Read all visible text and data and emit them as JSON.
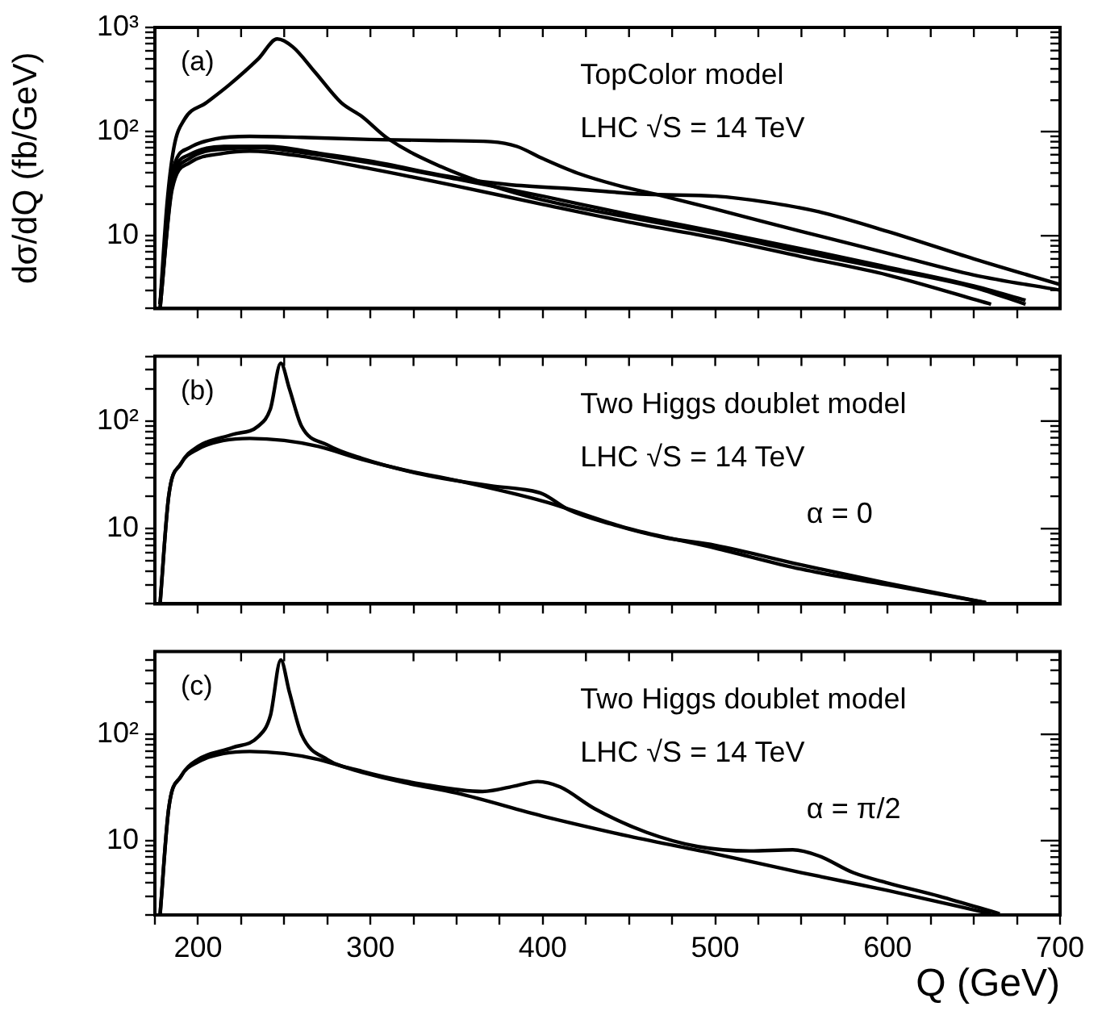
{
  "chart_data": [
    {
      "type": "line",
      "ylabel": "dσ/dQ (fb/GeV)",
      "annotations": [
        "(a)",
        "TopColor model",
        "LHC √S = 14 TeV"
      ],
      "log": true,
      "grid": false,
      "legend": false,
      "tick_labels": "y",
      "xlim": [
        175,
        700
      ],
      "xticks": [
        {
          "value": 200,
          "label": null
        },
        {
          "value": 225,
          "label": null
        },
        {
          "value": 250,
          "label": null
        },
        {
          "value": 275,
          "label": null
        },
        {
          "value": 300,
          "label": null
        },
        {
          "value": 325,
          "label": null
        },
        {
          "value": 350,
          "label": null
        },
        {
          "value": 375,
          "label": null
        },
        {
          "value": 400,
          "label": null
        },
        {
          "value": 425,
          "label": null
        },
        {
          "value": 450,
          "label": null
        },
        {
          "value": 475,
          "label": null
        },
        {
          "value": 500,
          "label": null
        },
        {
          "value": 525,
          "label": null
        },
        {
          "value": 550,
          "label": null
        },
        {
          "value": 575,
          "label": null
        },
        {
          "value": 600,
          "label": null
        },
        {
          "value": 625,
          "label": null
        },
        {
          "value": 650,
          "label": null
        },
        {
          "value": 675,
          "label": null
        }
      ],
      "ylim": [
        2,
        1000
      ],
      "yticks": [
        {
          "value": 2,
          "label": null
        },
        {
          "value": 3,
          "label": null
        },
        {
          "value": 4,
          "label": null
        },
        {
          "value": 5,
          "label": null
        },
        {
          "value": 6,
          "label": null
        },
        {
          "value": 7,
          "label": null
        },
        {
          "value": 8,
          "label": null
        },
        {
          "value": 9,
          "label": null
        },
        {
          "value": 10,
          "label": "10"
        },
        {
          "value": 20,
          "label": null
        },
        {
          "value": 30,
          "label": null
        },
        {
          "value": 40,
          "label": null
        },
        {
          "value": 50,
          "label": null
        },
        {
          "value": 60,
          "label": null
        },
        {
          "value": 70,
          "label": null
        },
        {
          "value": 80,
          "label": null
        },
        {
          "value": 90,
          "label": null
        },
        {
          "value": 100,
          "label": "10²"
        },
        {
          "value": 200,
          "label": null
        },
        {
          "value": 300,
          "label": null
        },
        {
          "value": 400,
          "label": null
        },
        {
          "value": 500,
          "label": null
        },
        {
          "value": 600,
          "label": null
        },
        {
          "value": 700,
          "label": null
        },
        {
          "value": 800,
          "label": null
        },
        {
          "value": 900,
          "label": null
        },
        {
          "value": 1000,
          "label": "10³"
        }
      ],
      "series": [
        {
          "color": "#000000",
          "x": [
            178,
            182,
            186,
            192,
            205,
            218,
            235,
            246,
            255,
            268,
            283,
            295,
            310,
            341,
            371,
            400,
            450,
            500,
            550,
            600,
            650,
            680
          ],
          "values": [
            2.2,
            20,
            70,
            130,
            190,
            280,
            500,
            775,
            650,
            370,
            190,
            140,
            86,
            46,
            30,
            22,
            15,
            10.5,
            7,
            4.8,
            3.2,
            2.2
          ]
        },
        {
          "color": "#000000",
          "x": [
            178,
            185,
            195,
            210,
            230,
            260,
            300,
            340,
            370,
            385,
            400,
            420,
            445,
            470,
            500,
            550,
            600,
            650,
            700
          ],
          "values": [
            2.2,
            40,
            70,
            85,
            90,
            88,
            84,
            82,
            80,
            72,
            55,
            40,
            30,
            24,
            18,
            11,
            6.8,
            4.2,
            3
          ]
        },
        {
          "color": "#000000",
          "x": [
            178,
            185,
            195,
            215,
            240,
            270,
            300,
            350,
            380,
            420,
            460,
            500,
            530,
            560,
            600,
            650,
            700
          ],
          "values": [
            2.2,
            35,
            60,
            72,
            72,
            62,
            52,
            36,
            31,
            28,
            25,
            24,
            21,
            17,
            11,
            6,
            3.4
          ]
        },
        {
          "color": "#000000",
          "x": [
            178,
            185,
            195,
            215,
            235,
            260,
            300,
            350,
            400,
            450,
            500,
            550,
            600,
            650,
            680
          ],
          "values": [
            2,
            30,
            55,
            68,
            70,
            63,
            50,
            35,
            24,
            16,
            11,
            7.5,
            5,
            3.3,
            2.4
          ]
        },
        {
          "color": "#000000",
          "x": [
            178,
            185,
            195,
            215,
            230,
            260,
            300,
            350,
            400,
            450,
            500,
            550,
            600,
            660
          ],
          "values": [
            2,
            28,
            50,
            62,
            65,
            58,
            44,
            30,
            20,
            13.5,
            9.5,
            6.3,
            4.2,
            2.2
          ]
        }
      ]
    },
    {
      "type": "line",
      "annotations": [
        "(b)",
        "Two Higgs doublet model",
        "LHC √S = 14 TeV",
        "α = 0"
      ],
      "log": true,
      "grid": false,
      "legend": false,
      "tick_labels": "y",
      "xlim": [
        175,
        700
      ],
      "xticks": [
        {
          "value": 200,
          "label": null
        },
        {
          "value": 225,
          "label": null
        },
        {
          "value": 250,
          "label": null
        },
        {
          "value": 275,
          "label": null
        },
        {
          "value": 300,
          "label": null
        },
        {
          "value": 325,
          "label": null
        },
        {
          "value": 350,
          "label": null
        },
        {
          "value": 375,
          "label": null
        },
        {
          "value": 400,
          "label": null
        },
        {
          "value": 425,
          "label": null
        },
        {
          "value": 450,
          "label": null
        },
        {
          "value": 475,
          "label": null
        },
        {
          "value": 500,
          "label": null
        },
        {
          "value": 525,
          "label": null
        },
        {
          "value": 550,
          "label": null
        },
        {
          "value": 575,
          "label": null
        },
        {
          "value": 600,
          "label": null
        },
        {
          "value": 625,
          "label": null
        },
        {
          "value": 650,
          "label": null
        },
        {
          "value": 675,
          "label": null
        }
      ],
      "ylim": [
        2,
        400
      ],
      "yticks": [
        {
          "value": 2,
          "label": null
        },
        {
          "value": 3,
          "label": null
        },
        {
          "value": 4,
          "label": null
        },
        {
          "value": 5,
          "label": null
        },
        {
          "value": 6,
          "label": null
        },
        {
          "value": 7,
          "label": null
        },
        {
          "value": 8,
          "label": null
        },
        {
          "value": 9,
          "label": null
        },
        {
          "value": 10,
          "label": "10"
        },
        {
          "value": 20,
          "label": null
        },
        {
          "value": 30,
          "label": null
        },
        {
          "value": 40,
          "label": null
        },
        {
          "value": 50,
          "label": null
        },
        {
          "value": 60,
          "label": null
        },
        {
          "value": 70,
          "label": null
        },
        {
          "value": 80,
          "label": null
        },
        {
          "value": 90,
          "label": null
        },
        {
          "value": 100,
          "label": "10²"
        },
        {
          "value": 200,
          "label": null
        },
        {
          "value": 300,
          "label": null
        },
        {
          "value": 400,
          "label": null
        }
      ],
      "series": [
        {
          "color": "#000000",
          "x": [
            178,
            183,
            190,
            200,
            215,
            230,
            250,
            270,
            295,
            320,
            350,
            400,
            450,
            500,
            550,
            600,
            657
          ],
          "values": [
            2,
            20,
            40,
            55,
            66,
            69,
            66,
            58,
            44,
            35,
            28,
            18,
            10,
            6.6,
            4.2,
            3,
            2.05
          ]
        },
        {
          "color": "#000000",
          "x": [
            178,
            183,
            190,
            200,
            220,
            235,
            242,
            248,
            253,
            260,
            275,
            295,
            330,
            370,
            390,
            400,
            415,
            440,
            470,
            500,
            550,
            600,
            657
          ],
          "values": [
            2,
            20,
            40,
            58,
            75,
            90,
            130,
            345,
            200,
            90,
            60,
            45,
            32,
            25,
            23,
            21,
            15,
            11,
            8.3,
            7,
            4.6,
            3.1,
            2.05
          ]
        }
      ]
    },
    {
      "type": "line",
      "xlabel": "Q (GeV)",
      "annotations": [
        "(c)",
        "Two Higgs doublet model",
        "LHC √S = 14 TeV",
        "α = π/2"
      ],
      "log": true,
      "grid": false,
      "legend": false,
      "xlim": [
        175,
        700
      ],
      "xticks": [
        {
          "value": 175,
          "label": null
        },
        200,
        {
          "value": 225,
          "label": null
        },
        {
          "value": 250,
          "label": null
        },
        {
          "value": 275,
          "label": null
        },
        300,
        {
          "value": 325,
          "label": null
        },
        {
          "value": 350,
          "label": null
        },
        {
          "value": 375,
          "label": null
        },
        400,
        {
          "value": 425,
          "label": null
        },
        {
          "value": 450,
          "label": null
        },
        {
          "value": 475,
          "label": null
        },
        500,
        {
          "value": 525,
          "label": null
        },
        {
          "value": 550,
          "label": null
        },
        {
          "value": 575,
          "label": null
        },
        600,
        {
          "value": 625,
          "label": null
        },
        {
          "value": 650,
          "label": null
        },
        {
          "value": 675,
          "label": null
        },
        700
      ],
      "ylim": [
        2,
        600
      ],
      "yticks": [
        {
          "value": 2,
          "label": null
        },
        {
          "value": 3,
          "label": null
        },
        {
          "value": 4,
          "label": null
        },
        {
          "value": 5,
          "label": null
        },
        {
          "value": 6,
          "label": null
        },
        {
          "value": 7,
          "label": null
        },
        {
          "value": 8,
          "label": null
        },
        {
          "value": 9,
          "label": null
        },
        {
          "value": 10,
          "label": "10"
        },
        {
          "value": 20,
          "label": null
        },
        {
          "value": 30,
          "label": null
        },
        {
          "value": 40,
          "label": null
        },
        {
          "value": 50,
          "label": null
        },
        {
          "value": 60,
          "label": null
        },
        {
          "value": 70,
          "label": null
        },
        {
          "value": 80,
          "label": null
        },
        {
          "value": 90,
          "label": null
        },
        {
          "value": 100,
          "label": "10²"
        },
        {
          "value": 200,
          "label": null
        },
        {
          "value": 300,
          "label": null
        },
        {
          "value": 400,
          "label": null
        },
        {
          "value": 500,
          "label": null
        }
      ],
      "series": [
        {
          "color": "#000000",
          "x": [
            178,
            183,
            190,
            200,
            215,
            230,
            250,
            270,
            295,
            320,
            350,
            400,
            450,
            500,
            550,
            600,
            660
          ],
          "values": [
            2,
            20,
            40,
            55,
            66,
            69,
            66,
            58,
            44,
            35,
            28,
            17,
            11,
            7.5,
            5,
            3.4,
            2.05
          ]
        },
        {
          "color": "#000000",
          "x": [
            178,
            183,
            190,
            200,
            220,
            235,
            242,
            248,
            253,
            260,
            275,
            295,
            330,
            365,
            385,
            397,
            410,
            430,
            460,
            490,
            520,
            545,
            560,
            580,
            600,
            630,
            665
          ],
          "values": [
            2,
            20,
            40,
            58,
            75,
            95,
            150,
            500,
            250,
            100,
            58,
            45,
            34,
            29,
            33,
            36,
            32,
            20,
            12,
            8.8,
            8,
            8.2,
            7.2,
            5,
            4,
            3,
            2.05
          ]
        }
      ]
    }
  ]
}
